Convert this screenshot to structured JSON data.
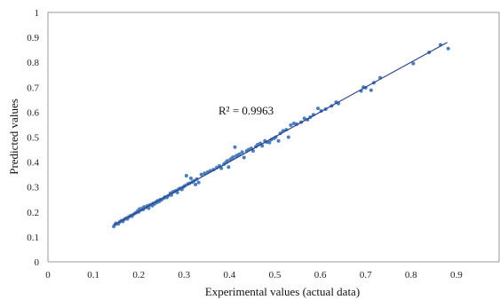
{
  "chart_data": {
    "type": "scatter",
    "title": "",
    "xlabel": "Experimental values (actual data)",
    "ylabel": "Predicted values",
    "xlim": [
      0,
      1
    ],
    "ylim": [
      0,
      1
    ],
    "xticks": [
      "0",
      "0.1",
      "0.2",
      "0.3",
      "0.4",
      "0.5",
      "0.6",
      "0.7",
      "0.8",
      "0.9"
    ],
    "xtick_values": [
      0,
      0.1,
      0.2,
      0.3,
      0.4,
      0.5,
      0.6,
      0.7,
      0.8,
      0.9
    ],
    "yticks": [
      "0",
      "0.1",
      "0.2",
      "0.3",
      "0.4",
      "0.5",
      "0.6",
      "0.7",
      "0.8",
      "0.9",
      "1"
    ],
    "ytick_values": [
      0,
      0.1,
      0.2,
      0.3,
      0.4,
      0.5,
      0.6,
      0.7,
      0.8,
      0.9,
      1
    ],
    "grid": false,
    "annotation": "R² = 0.9963",
    "trendline": {
      "x": [
        0.145,
        0.88
      ],
      "y": [
        0.147,
        0.88
      ],
      "color": "#2b3f8c"
    },
    "marker_color": "#4a7ebb",
    "points": [
      [
        0.145,
        0.142
      ],
      [
        0.148,
        0.15
      ],
      [
        0.15,
        0.155
      ],
      [
        0.155,
        0.152
      ],
      [
        0.158,
        0.16
      ],
      [
        0.162,
        0.165
      ],
      [
        0.165,
        0.162
      ],
      [
        0.168,
        0.17
      ],
      [
        0.172,
        0.175
      ],
      [
        0.175,
        0.172
      ],
      [
        0.178,
        0.18
      ],
      [
        0.182,
        0.185
      ],
      [
        0.185,
        0.183
      ],
      [
        0.188,
        0.19
      ],
      [
        0.192,
        0.195
      ],
      [
        0.195,
        0.198
      ],
      [
        0.198,
        0.205
      ],
      [
        0.2,
        0.2
      ],
      [
        0.202,
        0.212
      ],
      [
        0.205,
        0.208
      ],
      [
        0.208,
        0.215
      ],
      [
        0.21,
        0.21
      ],
      [
        0.212,
        0.22
      ],
      [
        0.215,
        0.218
      ],
      [
        0.218,
        0.222
      ],
      [
        0.22,
        0.225
      ],
      [
        0.222,
        0.215
      ],
      [
        0.225,
        0.228
      ],
      [
        0.228,
        0.23
      ],
      [
        0.23,
        0.225
      ],
      [
        0.232,
        0.235
      ],
      [
        0.235,
        0.232
      ],
      [
        0.238,
        0.24
      ],
      [
        0.24,
        0.238
      ],
      [
        0.242,
        0.245
      ],
      [
        0.245,
        0.242
      ],
      [
        0.248,
        0.25
      ],
      [
        0.25,
        0.248
      ],
      [
        0.255,
        0.255
      ],
      [
        0.258,
        0.26
      ],
      [
        0.262,
        0.258
      ],
      [
        0.265,
        0.265
      ],
      [
        0.27,
        0.275
      ],
      [
        0.272,
        0.268
      ],
      [
        0.275,
        0.28
      ],
      [
        0.278,
        0.282
      ],
      [
        0.282,
        0.285
      ],
      [
        0.285,
        0.278
      ],
      [
        0.288,
        0.292
      ],
      [
        0.292,
        0.295
      ],
      [
        0.295,
        0.29
      ],
      [
        0.298,
        0.3
      ],
      [
        0.302,
        0.305
      ],
      [
        0.305,
        0.345
      ],
      [
        0.308,
        0.312
      ],
      [
        0.312,
        0.315
      ],
      [
        0.315,
        0.335
      ],
      [
        0.318,
        0.32
      ],
      [
        0.322,
        0.325
      ],
      [
        0.325,
        0.31
      ],
      [
        0.328,
        0.332
      ],
      [
        0.332,
        0.318
      ],
      [
        0.338,
        0.35
      ],
      [
        0.345,
        0.355
      ],
      [
        0.352,
        0.36
      ],
      [
        0.358,
        0.365
      ],
      [
        0.365,
        0.37
      ],
      [
        0.372,
        0.378
      ],
      [
        0.378,
        0.385
      ],
      [
        0.382,
        0.375
      ],
      [
        0.388,
        0.392
      ],
      [
        0.392,
        0.398
      ],
      [
        0.395,
        0.405
      ],
      [
        0.398,
        0.38
      ],
      [
        0.402,
        0.41
      ],
      [
        0.405,
        0.415
      ],
      [
        0.408,
        0.42
      ],
      [
        0.412,
        0.46
      ],
      [
        0.415,
        0.425
      ],
      [
        0.418,
        0.428
      ],
      [
        0.422,
        0.432
      ],
      [
        0.428,
        0.44
      ],
      [
        0.432,
        0.418
      ],
      [
        0.438,
        0.445
      ],
      [
        0.442,
        0.45
      ],
      [
        0.448,
        0.455
      ],
      [
        0.452,
        0.445
      ],
      [
        0.458,
        0.462
      ],
      [
        0.462,
        0.47
      ],
      [
        0.468,
        0.475
      ],
      [
        0.472,
        0.465
      ],
      [
        0.478,
        0.485
      ],
      [
        0.482,
        0.48
      ],
      [
        0.488,
        0.478
      ],
      [
        0.492,
        0.49
      ],
      [
        0.498,
        0.495
      ],
      [
        0.502,
        0.5
      ],
      [
        0.508,
        0.485
      ],
      [
        0.512,
        0.515
      ],
      [
        0.518,
        0.525
      ],
      [
        0.525,
        0.53
      ],
      [
        0.53,
        0.5
      ],
      [
        0.535,
        0.548
      ],
      [
        0.542,
        0.555
      ],
      [
        0.548,
        0.552
      ],
      [
        0.558,
        0.56
      ],
      [
        0.565,
        0.575
      ],
      [
        0.572,
        0.57
      ],
      [
        0.578,
        0.58
      ],
      [
        0.585,
        0.59
      ],
      [
        0.595,
        0.615
      ],
      [
        0.602,
        0.605
      ],
      [
        0.612,
        0.612
      ],
      [
        0.625,
        0.625
      ],
      [
        0.635,
        0.64
      ],
      [
        0.64,
        0.635
      ],
      [
        0.69,
        0.685
      ],
      [
        0.695,
        0.7
      ],
      [
        0.7,
        0.698
      ],
      [
        0.712,
        0.688
      ],
      [
        0.718,
        0.718
      ],
      [
        0.732,
        0.738
      ],
      [
        0.805,
        0.795
      ],
      [
        0.84,
        0.84
      ],
      [
        0.865,
        0.87
      ],
      [
        0.882,
        0.855
      ]
    ]
  }
}
